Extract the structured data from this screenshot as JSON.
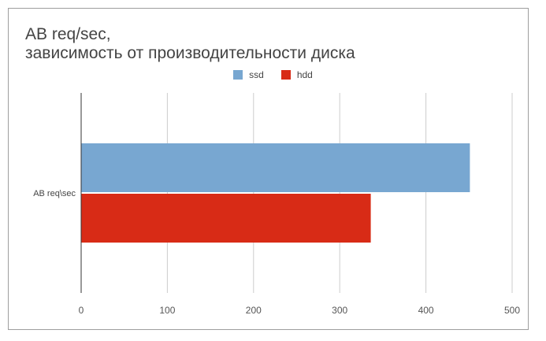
{
  "chart_data": {
    "type": "bar",
    "orientation": "horizontal",
    "title": "AB req/sec,",
    "subtitle": "зависимость от производительности диска",
    "categories": [
      "AB req\\sec"
    ],
    "series": [
      {
        "name": "ssd",
        "values": [
          451
        ],
        "color": "#78a7d1"
      },
      {
        "name": "hdd",
        "values": [
          336
        ],
        "color": "#d82b16"
      }
    ],
    "xlim": [
      0,
      500
    ],
    "xticks": [
      0,
      100,
      200,
      300,
      400,
      500
    ],
    "grid": true,
    "legend_position": "top"
  }
}
